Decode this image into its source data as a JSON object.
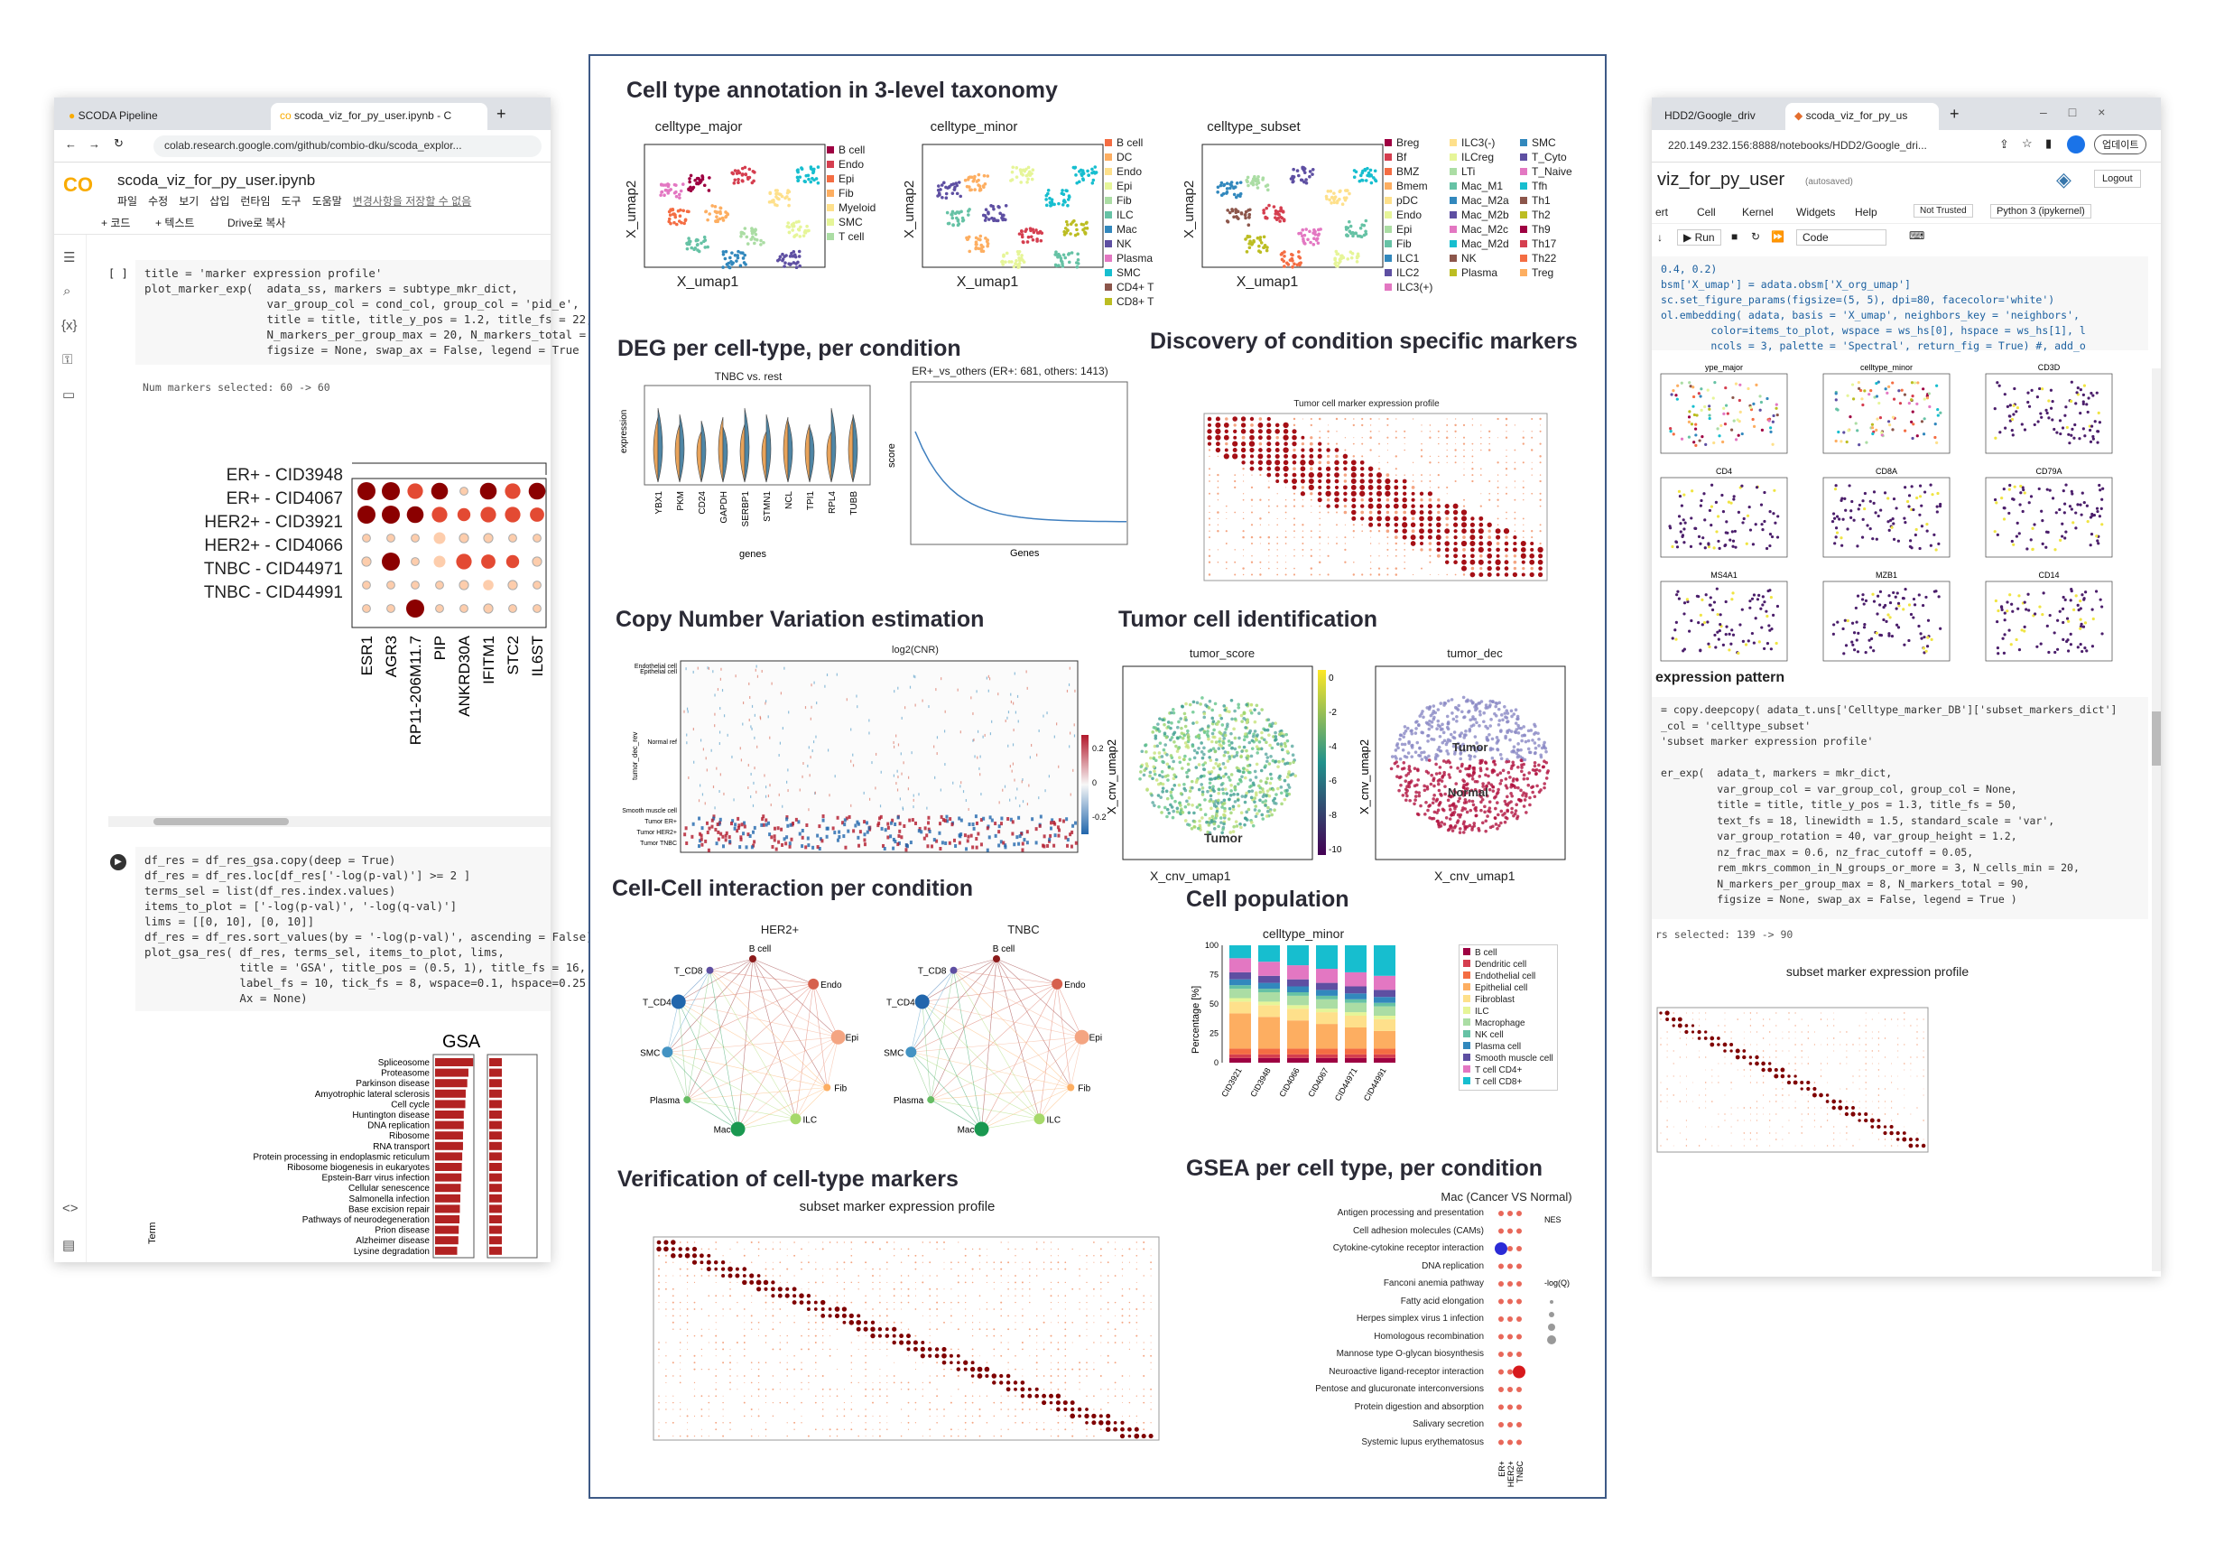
{
  "left_window": {
    "tabs": [
      "SCODA Pipeline",
      "scoda_viz_for_py_user.ipynb - C"
    ],
    "url": "colab.research.google.com/github/combio-dku/scoda_explor...",
    "notebook_title": "scoda_viz_for_py_user.ipynb",
    "menu": [
      "파일",
      "수정",
      "보기",
      "삽입",
      "런타임",
      "도구",
      "도움말",
      "변경사항을 저장할 수 없음"
    ],
    "toolbar": {
      "code": "+ 코드",
      "text": "+ 텍스트",
      "drive": "Drive로 복사"
    },
    "cell1_prompt": "[ ]",
    "cell1_code": "title = 'marker expression profile'\nplot_marker_exp(  adata_ss, markers = subtype_mkr_dict,\n                  var_group_col = cond_col, group_col = 'pid_e',\n                  title = title, title_y_pos = 1.2, title_fs = 22,\n                  N_markers_per_group_max = 20, N_markers_total =\n                  figsize = None, swap_ax = False, legend = True",
    "cell1_output": "Num markers selected: 60 -> 60",
    "dotplot_rows": [
      "ER+ - CID3948",
      "ER+ - CID4067",
      "HER2+ - CID3921",
      "HER2+ - CID4066",
      "TNBC - CID44971",
      "TNBC - CID44991"
    ],
    "dotplot_genes": [
      "ESR1",
      "AGR3",
      "RP11-206M11.7",
      "PIP",
      "ANKRD30A",
      "IFITM1",
      "STC2",
      "IL6ST"
    ],
    "cell2_code": "df_res = df_res_gsa.copy(deep = True)\ndf_res = df_res.loc[df_res['-log(p-val)'] >= 2 ]\nterms_sel = list(df_res.index.values)\nitems_to_plot = ['-log(p-val)', '-log(q-val)']\nlims = [[0, 10], [0, 10]]\ndf_res = df_res.sort_values(by = '-log(p-val)', ascending = False)\nplot_gsa_res( df_res, terms_sel, items_to_plot, lims,\n              title = 'GSA', title_pos = (0.5, 1), title_fs = 16,\n              label_fs = 10, tick_fs = 8, wspace=0.1, hspace=0.25\n              Ax = None)",
    "gsa_title": "GSA",
    "gsa_ylabel": "Term",
    "gsa_terms": [
      "Spliceosome",
      "Proteasome",
      "Parkinson disease",
      "Amyotrophic lateral sclerosis",
      "Cell cycle",
      "Huntington disease",
      "DNA replication",
      "Ribosome",
      "RNA transport",
      "Protein processing in endoplasmic reticulum",
      "Ribosome biogenesis in eukaryotes",
      "Epstein-Barr virus infection",
      "Cellular senescence",
      "Salmonella infection",
      "Base excision repair",
      "Pathways of neurodegeneration",
      "Prion disease",
      "Alzheimer disease",
      "Lysine degradation"
    ],
    "gsa_values": [
      9.8,
      8.6,
      8.3,
      7.9,
      7.8,
      7.4,
      7.4,
      7.2,
      7.2,
      7.0,
      6.9,
      6.8,
      6.6,
      6.5,
      6.4,
      6.3,
      6.1,
      6.0,
      5.7
    ]
  },
  "poster": {
    "s1_title": "Cell type annotation in 3-level taxonomy",
    "umap_titles": [
      "celltype_major",
      "celltype_minor",
      "celltype_subset"
    ],
    "umap_xlabel": "X_umap1",
    "umap_ylabel": "X_umap2",
    "legend_major": [
      "B cell",
      "Endo",
      "Epi",
      "Fib",
      "Myeloid",
      "SMC",
      "T cell"
    ],
    "legend_minor": [
      "B cell",
      "DC",
      "Endo",
      "Epi",
      "Fib",
      "ILC",
      "Mac",
      "NK",
      "Plasma",
      "SMC",
      "CD4+ T",
      "CD8+ T"
    ],
    "legend_subset_1": [
      "Breg",
      "Bf",
      "BMZ",
      "Bmem",
      "pDC",
      "Endo",
      "Epi",
      "Fib",
      "ILC1",
      "ILC2",
      "ILC3(+)"
    ],
    "legend_subset_2": [
      "ILC3(-)",
      "ILCreg",
      "LTi",
      "Mac_M1",
      "Mac_M2a",
      "Mac_M2b",
      "Mac_M2c",
      "Mac_M2d",
      "NK",
      "Plasma"
    ],
    "legend_subset_3": [
      "SMC",
      "T_Cyto",
      "T_Naive",
      "Tfh",
      "Th1",
      "Th2",
      "Th9",
      "Th17",
      "Th22",
      "Treg"
    ],
    "s2_title": "DEG per cell-type, per condition",
    "violin_title": "TNBC vs. rest",
    "violin_ylabel": "expression",
    "violin_genes": [
      "YBX1",
      "PKM",
      "CD24",
      "GAPDH",
      "SERBP1",
      "STMN1",
      "NCL",
      "TPI1",
      "RPL4",
      "TUBB"
    ],
    "violin_xlabel": "genes",
    "rank_title": "ER+_vs_others (ER+: 681, others: 1413)",
    "rank_xlabel": "Genes",
    "rank_ylabel": "score",
    "s3_title": "Discovery of condition specific markers",
    "s3_sub": "Tumor cell marker expression profile",
    "s4_title": "Copy Number Variation estimation",
    "cnv_title": "log2(CNR)",
    "cnv_rows": [
      "Endothelial cell",
      "Epithelial cell",
      "Normal ref",
      "Smooth muscle cell",
      "Tumor ER+",
      "Tumor HER2+",
      "Tumor TNBC"
    ],
    "cnv_ylabel": "tumor_dec_rev",
    "cnv_scale": [
      "0.2",
      "0",
      "-0.2"
    ],
    "s5_title": "Tumor cell identification",
    "tumor_titles": [
      "tumor_score",
      "tumor_dec"
    ],
    "tumor_xlabel": "X_cnv_umap1",
    "tumor_ylabel": "X_cnv_umap2",
    "tumor_scale": [
      "0",
      "-2",
      "-4",
      "-6",
      "-8",
      "-10"
    ],
    "tumor_labels": [
      "Tumor",
      "Normal"
    ],
    "s6_title": "Cell-Cell interaction per condition",
    "net_titles": [
      "HER2+",
      "TNBC"
    ],
    "net_nodes": [
      "B cell",
      "Endo",
      "Epi",
      "Fib",
      "ILC",
      "Mac",
      "Plasma",
      "SMC",
      "T_CD4",
      "T_CD8"
    ],
    "s7_title": "Cell population",
    "pop_title": "celltype_minor",
    "pop_ylabel": "Percentage [%]",
    "pop_samples": [
      "CID3921",
      "CID3948",
      "CID4066",
      "CID4067",
      "CID44971",
      "CID44991"
    ],
    "pop_legend": [
      "B cell",
      "Dendritic cell",
      "Endothelial cell",
      "Epithelial cell",
      "Fibroblast",
      "ILC",
      "Macrophage",
      "NK cell",
      "Plasma cell",
      "Smooth muscle cell",
      "T cell CD4+",
      "T cell CD8+"
    ],
    "s8_title": "Verification of cell-type markers",
    "s8_sub": "subset marker expression profile",
    "s9_title": "GSEA per cell type,  per condition",
    "gsea_sub": "Mac (Cancer VS Normal)",
    "gsea_terms": [
      "Antigen processing and presentation",
      "Cell adhesion molecules (CAMs)",
      "Cytokine-cytokine receptor interaction",
      "DNA replication",
      "Fanconi anemia pathway",
      "Fatty acid elongation",
      "Herpes simplex virus 1 infection",
      "Homologous recombination",
      "Mannose type O-glycan biosynthesis",
      "Neuroactive ligand-receptor interaction",
      "Pentose and glucuronate interconversions",
      "Protein digestion and absorption",
      "Salivary secretion",
      "Systemic lupus erythematosus"
    ],
    "gsea_cols": [
      "ER+",
      "HER2+",
      "TNBC"
    ],
    "gsea_legend": [
      "NES",
      "-log(Q)"
    ]
  },
  "right_window": {
    "tabs": [
      "HDD2/Google_driv",
      "scoda_viz_for_py_us"
    ],
    "url": "220.149.232.156:8888/notebooks/HDD2/Google_dri...",
    "update_btn": "업데이트",
    "nb_title": "viz_for_py_user",
    "autosaved": "(autosaved)",
    "logout": "Logout",
    "menu": [
      "ert",
      "Cell",
      "Kernel",
      "Widgets",
      "Help"
    ],
    "not_trusted": "Not Trusted",
    "kernel": "Python 3 (ipykernel)",
    "run": "Run",
    "cell_type": "Code",
    "code1": "0.4, 0.2)\nbsm['X_umap'] = adata.obsm['X_org_umap']\nsc.set_figure_params(figsize=(5, 5), dpi=80, facecolor='white')\nol.embedding( adata, basis = 'X_umap', neighbors_key = 'neighbors',\n        color=items_to_plot, wspace = ws_hs[0], hspace = ws_hs[1], l\n        ncols = 3, palette = 'Spectral', return_fig = True) #, add_o",
    "panel_titles": [
      "ype_major",
      "celltype_minor",
      "CD3D",
      "CD4",
      "CD8A",
      "CD79A",
      "MS4A1",
      "MZB1",
      "CD14"
    ],
    "section": "expression pattern",
    "code2": "= copy.deepcopy( adata_t.uns['Celltype_marker_DB']['subset_markers_dict']\n_col = 'celltype_subset'\n'subset marker expression profile'\n\ner_exp(  adata_t, markers = mkr_dict,\n         var_group_col = var_group_col, group_col = None,\n         title = title, title_y_pos = 1.3, title_fs = 50,\n         text_fs = 18, linewidth = 1.5, standard_scale = 'var',\n         var_group_rotation = 40, var_group_height = 1.2,\n         nz_frac_max = 0.6, nz_frac_cutoff = 0.05,\n         rem_mkrs_common_in_N_groups_or_more = 3, N_cells_min = 20,\n         N_markers_per_group_max = 8, N_markers_total = 90,\n         figsize = None, swap_ax = False, legend = True )",
    "output": "rs selected: 139 -> 90",
    "plot_title": "subset marker expression profile"
  },
  "colors": {
    "accent_blue": "#3e5a86",
    "dot_red": "#8b0000",
    "bar_red": "#b22222"
  }
}
